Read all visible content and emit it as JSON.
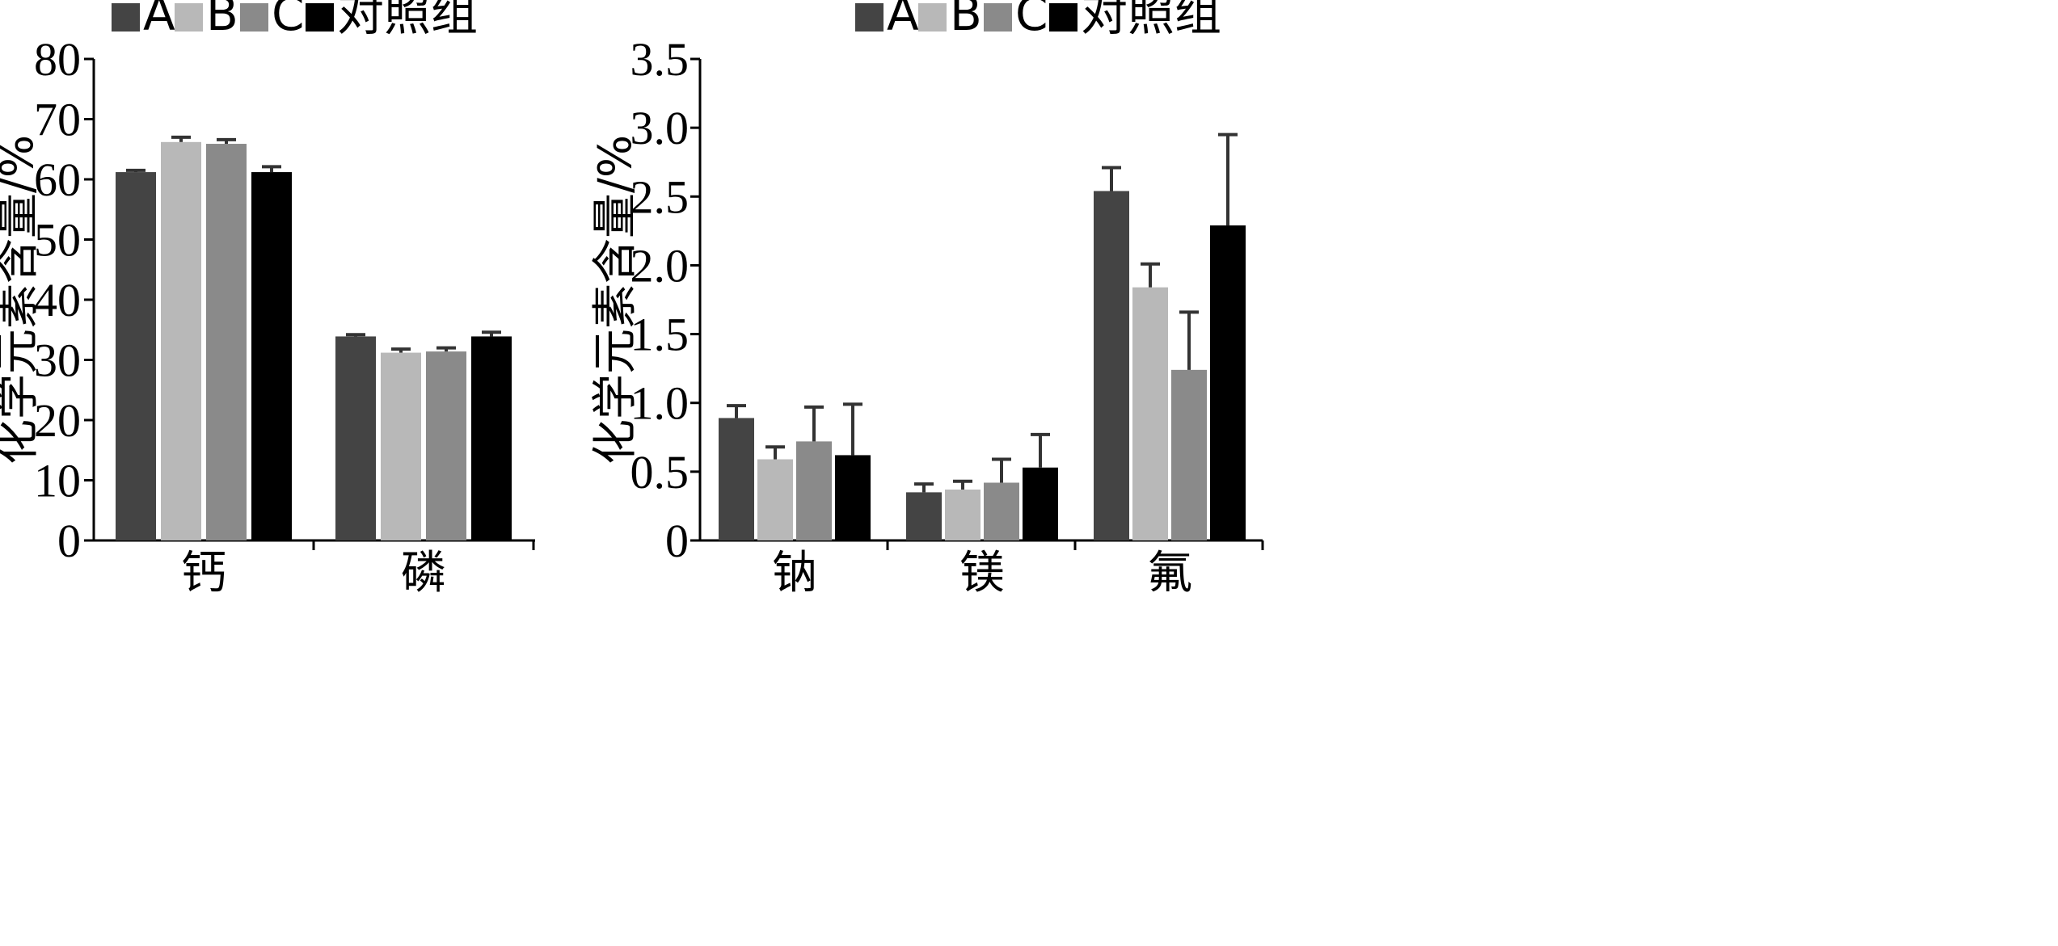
{
  "chart_data": [
    {
      "type": "bar",
      "categories": [
        "钙",
        "磷"
      ],
      "series": [
        {
          "name": "A",
          "values": [
            61.2,
            33.9
          ],
          "errors": [
            0.3,
            0.3
          ]
        },
        {
          "name": "B",
          "values": [
            66.2,
            31.2
          ],
          "errors": [
            0.8,
            0.6
          ]
        },
        {
          "name": "C",
          "values": [
            65.9,
            31.4
          ],
          "errors": [
            0.7,
            0.6
          ]
        },
        {
          "name": "对照组",
          "values": [
            61.2,
            33.9
          ],
          "errors": [
            0.9,
            0.7
          ]
        }
      ],
      "ylabel": "化学元素含量/%",
      "ylim": [
        0,
        80
      ],
      "yticks": [
        0,
        10,
        20,
        30,
        40,
        50,
        60,
        70,
        80
      ],
      "legend_position": "top-left",
      "grid": false
    },
    {
      "type": "bar",
      "categories": [
        "钠",
        "镁",
        "氟"
      ],
      "series": [
        {
          "name": "A",
          "values": [
            0.89,
            0.35,
            2.54
          ],
          "errors": [
            0.09,
            0.06,
            0.17
          ]
        },
        {
          "name": "B",
          "values": [
            0.59,
            0.37,
            1.84
          ],
          "errors": [
            0.09,
            0.06,
            0.17
          ]
        },
        {
          "name": "C",
          "values": [
            0.72,
            0.42,
            1.24
          ],
          "errors": [
            0.25,
            0.17,
            0.42
          ]
        },
        {
          "name": "对照组",
          "values": [
            0.62,
            0.53,
            2.29
          ],
          "errors": [
            0.37,
            0.24,
            0.66
          ]
        }
      ],
      "ylabel": "化学元素含量/%",
      "ylim": [
        0,
        3.5
      ],
      "yticks": [
        "0",
        "0.5",
        "1.0",
        "1.5",
        "2.0",
        "2.5",
        "3.0",
        "3.5"
      ],
      "legend_position": "top-left",
      "grid": false
    }
  ],
  "colors": {
    "A": "#444444",
    "B": "#b8b8b8",
    "C": "#8a8a8a",
    "对照组": "#000000",
    "axis": "#000000",
    "error_bar": "#333333"
  }
}
